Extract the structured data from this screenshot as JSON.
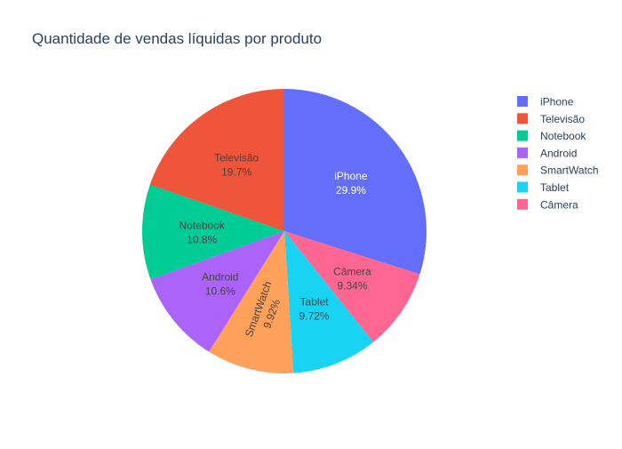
{
  "chart_data": {
    "type": "pie",
    "title": "Quantidade de vendas líquidas por produto",
    "slices": [
      {
        "label": "iPhone",
        "display_value": "29.9%",
        "value": 29.9,
        "color": "#636efa",
        "text_color": "#ffffff"
      },
      {
        "label": "Câmera",
        "display_value": "9.34%",
        "value": 9.34,
        "color": "#ff6692",
        "text_color": "#444444"
      },
      {
        "label": "Tablet",
        "display_value": "9.72%",
        "value": 9.72,
        "color": "#19d3f3",
        "text_color": "#444444"
      },
      {
        "label": "SmartWatch",
        "display_value": "9.92%",
        "value": 9.92,
        "color": "#ffa15a",
        "text_color": "#444444"
      },
      {
        "label": "Android",
        "display_value": "10.6%",
        "value": 10.6,
        "color": "#ab63fa",
        "text_color": "#444444"
      },
      {
        "label": "Notebook",
        "display_value": "10.8%",
        "value": 10.8,
        "color": "#00cc96",
        "text_color": "#444444"
      },
      {
        "label": "Televisão",
        "display_value": "19.7%",
        "value": 19.7,
        "color": "#ef553b",
        "text_color": "#444444"
      }
    ],
    "legend": {
      "position": "top-right",
      "order": [
        "iPhone",
        "Televisão",
        "Notebook",
        "Android",
        "SmartWatch",
        "Tablet",
        "Câmera"
      ]
    }
  }
}
